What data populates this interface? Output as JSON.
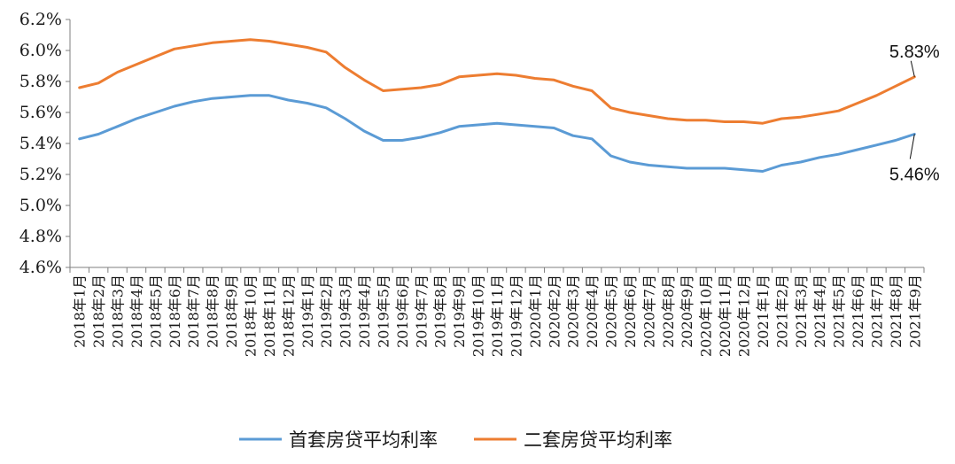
{
  "chart_data": {
    "type": "line",
    "categories": [
      "2018年1月",
      "2018年2月",
      "2018年3月",
      "2018年4月",
      "2018年5月",
      "2018年6月",
      "2018年7月",
      "2018年8月",
      "2018年9月",
      "2018年10月",
      "2018年11月",
      "2018年12月",
      "2019年1月",
      "2019年2月",
      "2019年3月",
      "2019年4月",
      "2019年5月",
      "2019年6月",
      "2019年7月",
      "2019年8月",
      "2019年9月",
      "2019年10月",
      "2019年11月",
      "2019年12月",
      "2020年1月",
      "2020年2月",
      "2020年3月",
      "2020年4月",
      "2020年5月",
      "2020年6月",
      "2020年7月",
      "2020年8月",
      "2020年9月",
      "2020年10月",
      "2020年11月",
      "2020年12月",
      "2021年1月",
      "2021年2月",
      "2021年3月",
      "2021年4月",
      "2021年5月",
      "2021年6月",
      "2021年7月",
      "2021年8月",
      "2021年9月"
    ],
    "series": [
      {
        "name": "首套房贷平均利率",
        "color": "#5b9bd5",
        "values": [
          5.43,
          5.46,
          5.51,
          5.56,
          5.6,
          5.64,
          5.67,
          5.69,
          5.7,
          5.71,
          5.71,
          5.68,
          5.66,
          5.63,
          5.56,
          5.48,
          5.42,
          5.42,
          5.44,
          5.47,
          5.51,
          5.52,
          5.53,
          5.52,
          5.51,
          5.5,
          5.45,
          5.43,
          5.32,
          5.28,
          5.26,
          5.25,
          5.24,
          5.24,
          5.24,
          5.23,
          5.22,
          5.26,
          5.28,
          5.31,
          5.33,
          5.36,
          5.39,
          5.42,
          5.46
        ]
      },
      {
        "name": "二套房贷平均利率",
        "color": "#ed7d31",
        "values": [
          5.76,
          5.79,
          5.86,
          5.91,
          5.96,
          6.01,
          6.03,
          6.05,
          6.06,
          6.07,
          6.06,
          6.04,
          6.02,
          5.99,
          5.89,
          5.81,
          5.74,
          5.75,
          5.76,
          5.78,
          5.83,
          5.84,
          5.85,
          5.84,
          5.82,
          5.81,
          5.77,
          5.74,
          5.63,
          5.6,
          5.58,
          5.56,
          5.55,
          5.55,
          5.54,
          5.54,
          5.53,
          5.56,
          5.57,
          5.59,
          5.61,
          5.66,
          5.71,
          5.77,
          5.83
        ]
      }
    ],
    "yticks": [
      "6.2%",
      "6.0%",
      "5.8%",
      "5.6%",
      "5.4%",
      "5.2%",
      "5.0%",
      "4.8%",
      "4.6%"
    ],
    "ylim": [
      4.6,
      6.2
    ],
    "annotations": [
      {
        "series": 1,
        "index": 44,
        "text": "5.83%"
      },
      {
        "series": 0,
        "index": 44,
        "text": "5.46%"
      }
    ],
    "legend_position": "bottom"
  }
}
